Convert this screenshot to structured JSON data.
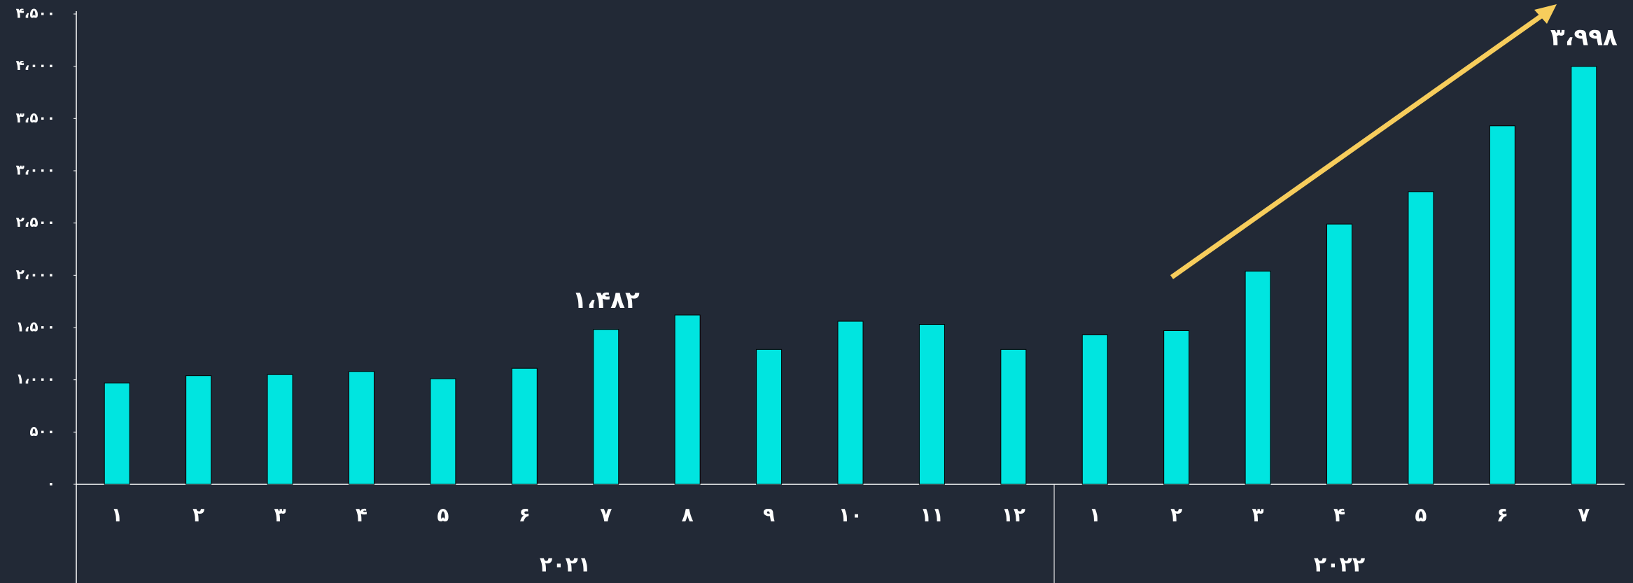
{
  "chart_data": {
    "type": "bar",
    "color": "#00e5e0",
    "ylim": [
      0,
      4500
    ],
    "yticks": [
      {
        "value": 0,
        "label": "۰"
      },
      {
        "value": 500,
        "label": "۵۰۰"
      },
      {
        "value": 1000,
        "label": "۱،۰۰۰"
      },
      {
        "value": 1500,
        "label": "۱،۵۰۰"
      },
      {
        "value": 2000,
        "label": "۲،۰۰۰"
      },
      {
        "value": 2500,
        "label": "۲،۵۰۰"
      },
      {
        "value": 3000,
        "label": "۳،۰۰۰"
      },
      {
        "value": 3500,
        "label": "۳،۵۰۰"
      },
      {
        "value": 4000,
        "label": "۴،۰۰۰"
      },
      {
        "value": 4500,
        "label": "۴،۵۰۰"
      }
    ],
    "groups": [
      {
        "label": "۲۰۲۱",
        "categories": [
          "۱",
          "۲",
          "۳",
          "۴",
          "۵",
          "۶",
          "۷",
          "۸",
          "۹",
          "۱۰",
          "۱۱",
          "۱۲"
        ],
        "values": [
          970,
          1040,
          1050,
          1080,
          1010,
          1110,
          1482,
          1620,
          1290,
          1560,
          1530,
          1290
        ],
        "value_labels": [
          null,
          null,
          null,
          null,
          null,
          null,
          "۱،۴۸۲",
          null,
          null,
          null,
          null,
          null
        ]
      },
      {
        "label": "۲۰۲۲",
        "categories": [
          "۱",
          "۲",
          "۳",
          "۴",
          "۵",
          "۶",
          "۷"
        ],
        "values": [
          1430,
          1470,
          2040,
          2490,
          2800,
          3430,
          3998
        ],
        "value_labels": [
          null,
          null,
          null,
          null,
          null,
          null,
          "۳،۹۹۸"
        ]
      }
    ]
  }
}
